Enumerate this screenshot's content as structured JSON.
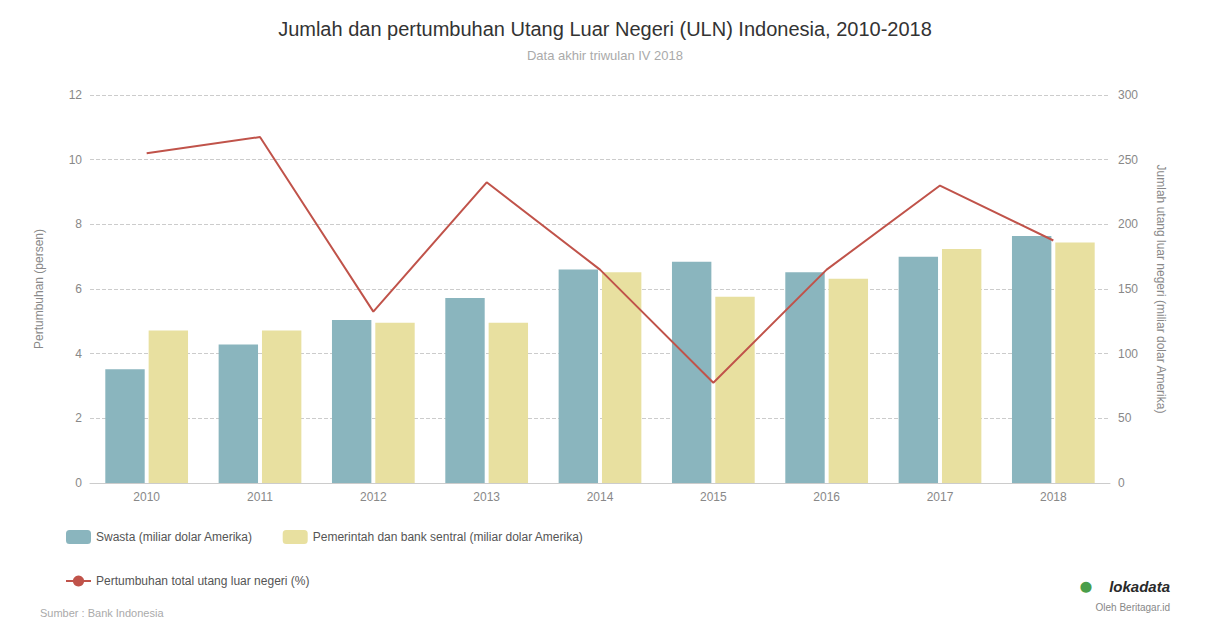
{
  "chart_data": {
    "type": "bar",
    "title": "Jumlah dan pertumbuhan Utang Luar Negeri (ULN) Indonesia, 2010-2018",
    "subtitle": "Data akhir triwulan IV 2018",
    "categories": [
      "2010",
      "2011",
      "2012",
      "2013",
      "2014",
      "2015",
      "2016",
      "2017",
      "2018"
    ],
    "series": [
      {
        "name": "Swasta (miliar dolar Amerika)",
        "type": "bar",
        "axis": "y2",
        "color": "#8ab5be",
        "values": [
          88,
          107,
          126,
          143,
          165,
          171,
          163,
          175,
          191
        ]
      },
      {
        "name": "Pemerintah dan bank sentral (miliar dolar Amerika)",
        "type": "bar",
        "axis": "y2",
        "color": "#e8e0a0",
        "values": [
          118,
          118,
          124,
          124,
          163,
          144,
          158,
          181,
          186
        ]
      },
      {
        "name": "Pertumbuhan total utang luar negeri (%)",
        "type": "line",
        "color": "#c0534a",
        "values": [
          10.2,
          10.7,
          5.3,
          9.3,
          6.6,
          3.1,
          6.6,
          9.2,
          7.5
        ]
      }
    ],
    "ylabel": "Pertumbuhan (persen)",
    "y2label": "Jumlah utang luar negeri (miliar dolar Amerika)",
    "ylim": [
      0,
      12
    ],
    "yticks": [
      0,
      2,
      4,
      6,
      8,
      10,
      12
    ],
    "y2lim": [
      0,
      300
    ],
    "y2ticks": [
      0,
      50,
      100,
      150,
      200,
      250,
      300
    ],
    "grid": true,
    "legend": "lower left",
    "source": "Sumber : Bank Indonesia",
    "annotations": [
      "lokadata",
      "Oleh Beritagar.id",
      "⬤"
    ]
  }
}
